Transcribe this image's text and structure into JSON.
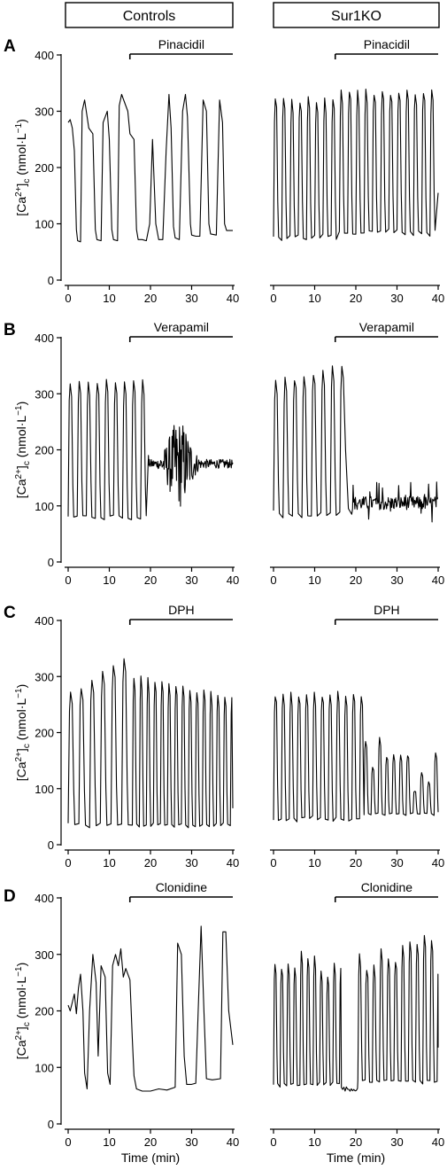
{
  "headers": {
    "left": "Controls",
    "right": "Sur1KO"
  },
  "ylabel": {
    "main": "[Ca",
    "sup": "2+",
    "close": "]",
    "sub": "c",
    "unit": "(nmol·L",
    "unitSup": "−1",
    "unitClose": ")"
  },
  "xlabel": "Time (min)",
  "chart_data": [
    {
      "type": "line",
      "panel": "A",
      "column": "Controls",
      "drug": "Pinacidil",
      "drug_start_min": 15,
      "drug_end_min": 40,
      "xlim": [
        0,
        40
      ],
      "ylim": [
        0,
        400
      ],
      "x_ticks": [
        0,
        10,
        20,
        30,
        40
      ],
      "y_ticks": [
        0,
        100,
        200,
        300,
        400
      ],
      "x_tick_labels": [
        "0",
        "10",
        "20",
        "30",
        "40"
      ],
      "y_tick_labels": [
        "0",
        "100",
        "200",
        "300",
        "400"
      ],
      "segments": [
        [
          0,
          280
        ],
        [
          0.5,
          285
        ],
        [
          1,
          270
        ],
        [
          1.5,
          230
        ],
        [
          2,
          90
        ],
        [
          2.3,
          70
        ],
        [
          3,
          68
        ],
        [
          3.4,
          300
        ],
        [
          4,
          320
        ],
        [
          5,
          270
        ],
        [
          6,
          260
        ],
        [
          6.6,
          90
        ],
        [
          7,
          72
        ],
        [
          8,
          70
        ],
        [
          8.5,
          280
        ],
        [
          9.5,
          300
        ],
        [
          10,
          250
        ],
        [
          10.6,
          90
        ],
        [
          11,
          72
        ],
        [
          12,
          70
        ],
        [
          12.4,
          310
        ],
        [
          13,
          330
        ],
        [
          14.5,
          300
        ],
        [
          15,
          260
        ],
        [
          16,
          250
        ],
        [
          16.6,
          90
        ],
        [
          17,
          72
        ],
        [
          18,
          72
        ],
        [
          19,
          70
        ],
        [
          19.8,
          100
        ],
        [
          20.5,
          250
        ],
        [
          21.3,
          100
        ],
        [
          22,
          72
        ],
        [
          23,
          72
        ],
        [
          23.8,
          230
        ],
        [
          24.5,
          330
        ],
        [
          25,
          270
        ],
        [
          25.6,
          95
        ],
        [
          26,
          75
        ],
        [
          27,
          72
        ],
        [
          27.8,
          300
        ],
        [
          28.5,
          330
        ],
        [
          29,
          290
        ],
        [
          29.7,
          100
        ],
        [
          30,
          80
        ],
        [
          31,
          78
        ],
        [
          32,
          78
        ],
        [
          32.8,
          320
        ],
        [
          33.6,
          300
        ],
        [
          34.2,
          100
        ],
        [
          34.6,
          82
        ],
        [
          36,
          80
        ],
        [
          36.8,
          320
        ],
        [
          37.5,
          280
        ],
        [
          38,
          100
        ],
        [
          38.5,
          88
        ],
        [
          40,
          88
        ]
      ]
    },
    {
      "type": "line",
      "panel": "A",
      "column": "Sur1KO",
      "drug": "Pinacidil",
      "drug_start_min": 15,
      "drug_end_min": 40,
      "xlim": [
        0,
        40
      ],
      "ylim": [
        0,
        400
      ],
      "x_ticks": [
        0,
        10,
        20,
        30,
        40
      ],
      "y_ticks": [
        0,
        100,
        200,
        300,
        400
      ],
      "x_tick_labels": [
        "0",
        "10",
        "20",
        "30",
        "40"
      ],
      "y_tick_labels": [
        "0",
        "100",
        "200",
        "300",
        "400"
      ],
      "period": 2.0,
      "peak": 320,
      "trough": 75,
      "peak_late": 335,
      "trough_late": 85,
      "end_value": 155
    },
    {
      "type": "line",
      "panel": "B",
      "column": "Controls",
      "drug": "Verapamil",
      "drug_start_min": 15,
      "drug_end_min": 40,
      "xlim": [
        0,
        40
      ],
      "ylim": [
        0,
        400
      ],
      "x_ticks": [
        0,
        10,
        20,
        30,
        40
      ],
      "y_ticks": [
        0,
        100,
        200,
        300,
        400
      ],
      "x_tick_labels": [
        "0",
        "10",
        "20",
        "30",
        "40"
      ],
      "y_tick_labels": [
        "0",
        "100",
        "200",
        "300",
        "400"
      ],
      "period": 2.2,
      "peak": 320,
      "trough": 80,
      "settle_value": 175,
      "noise_amplitude_max": 80,
      "noise_center_min": 27
    },
    {
      "type": "line",
      "panel": "B",
      "column": "Sur1KO",
      "drug": "Verapamil",
      "drug_start_min": 15,
      "drug_end_min": 40,
      "xlim": [
        0,
        40
      ],
      "ylim": [
        0,
        400
      ],
      "x_ticks": [
        0,
        10,
        20,
        30,
        40
      ],
      "y_ticks": [
        0,
        100,
        200,
        300,
        400
      ],
      "x_tick_labels": [
        "0",
        "10",
        "20",
        "30",
        "40"
      ],
      "y_tick_labels": [
        "0",
        "100",
        "200",
        "300",
        "400"
      ],
      "period": 2.3,
      "peak": 320,
      "trough": 85,
      "settle_value": 105,
      "noise_amplitude_max": 40
    },
    {
      "type": "line",
      "panel": "C",
      "column": "Controls",
      "drug": "DPH",
      "drug_start_min": 15,
      "drug_end_min": 40,
      "xlim": [
        0,
        40
      ],
      "ylim": [
        0,
        400
      ],
      "x_ticks": [
        0,
        10,
        20,
        30,
        40
      ],
      "y_ticks": [
        0,
        100,
        200,
        300,
        400
      ],
      "x_tick_labels": [
        "0",
        "10",
        "20",
        "30",
        "40"
      ],
      "y_tick_labels": [
        "0",
        "100",
        "200",
        "300",
        "400"
      ],
      "period_early": 2.6,
      "period_late": 1.7,
      "peak": 330,
      "trough": 35,
      "peak_late": 300
    },
    {
      "type": "line",
      "panel": "C",
      "column": "Sur1KO",
      "drug": "DPH",
      "drug_start_min": 15,
      "drug_end_min": 40,
      "xlim": [
        0,
        40
      ],
      "ylim": [
        0,
        400
      ],
      "x_ticks": [
        0,
        10,
        20,
        30,
        40
      ],
      "y_ticks": [
        0,
        100,
        200,
        300,
        400
      ],
      "x_tick_labels": [
        "0",
        "10",
        "20",
        "30",
        "40"
      ],
      "y_tick_labels": [
        "0",
        "100",
        "200",
        "300",
        "400"
      ],
      "period": 1.9,
      "peak_early": 270,
      "trough": 45,
      "peak_late": 190,
      "baseline_late": 55
    },
    {
      "type": "line",
      "panel": "D",
      "column": "Controls",
      "drug": "Clonidine",
      "drug_start_min": 15,
      "drug_end_min": 40,
      "xlim": [
        0,
        40
      ],
      "ylim": [
        0,
        400
      ],
      "x_ticks": [
        0,
        10,
        20,
        30,
        40
      ],
      "y_ticks": [
        0,
        100,
        200,
        300,
        400
      ],
      "x_tick_labels": [
        "0",
        "10",
        "20",
        "30",
        "40"
      ],
      "y_tick_labels": [
        "0",
        "100",
        "200",
        "300",
        "400"
      ],
      "segments": [
        [
          0,
          210
        ],
        [
          0.5,
          200
        ],
        [
          1,
          215
        ],
        [
          1.5,
          230
        ],
        [
          2,
          195
        ],
        [
          2.5,
          240
        ],
        [
          3,
          265
        ],
        [
          3.6,
          200
        ],
        [
          4,
          90
        ],
        [
          4.6,
          62
        ],
        [
          5.2,
          200
        ],
        [
          6,
          300
        ],
        [
          6.8,
          250
        ],
        [
          7.3,
          120
        ],
        [
          8,
          280
        ],
        [
          9,
          260
        ],
        [
          9.6,
          90
        ],
        [
          10.2,
          70
        ],
        [
          10.8,
          280
        ],
        [
          11.5,
          300
        ],
        [
          12.2,
          280
        ],
        [
          12.8,
          310
        ],
        [
          13.4,
          260
        ],
        [
          14,
          275
        ],
        [
          15,
          255
        ],
        [
          15.6,
          150
        ],
        [
          16,
          85
        ],
        [
          16.6,
          62
        ],
        [
          18,
          58
        ],
        [
          20,
          58
        ],
        [
          22,
          62
        ],
        [
          24,
          60
        ],
        [
          26,
          65
        ],
        [
          26.6,
          320
        ],
        [
          27.5,
          300
        ],
        [
          28.2,
          120
        ],
        [
          28.8,
          70
        ],
        [
          30,
          70
        ],
        [
          31,
          72
        ],
        [
          31.6,
          200
        ],
        [
          32.3,
          350
        ],
        [
          33,
          200
        ],
        [
          33.6,
          80
        ],
        [
          35,
          78
        ],
        [
          37,
          80
        ],
        [
          37.6,
          340
        ],
        [
          38.3,
          340
        ],
        [
          39,
          200
        ],
        [
          40,
          140
        ]
      ]
    },
    {
      "type": "line",
      "panel": "D",
      "column": "Sur1KO",
      "drug": "Clonidine",
      "drug_start_min": 15,
      "drug_end_min": 40,
      "xlim": [
        0,
        40
      ],
      "ylim": [
        0,
        400
      ],
      "x_ticks": [
        0,
        10,
        20,
        30,
        40
      ],
      "y_ticks": [
        0,
        100,
        200,
        300,
        400
      ],
      "x_tick_labels": [
        "0",
        "10",
        "20",
        "30",
        "40"
      ],
      "y_tick_labels": [
        "0",
        "100",
        "200",
        "300",
        "400"
      ],
      "period": 1.6,
      "peak": 280,
      "trough": 70,
      "pause_start": 16.5,
      "pause_end": 20.5,
      "peak_late": 320,
      "end_value": 135
    }
  ]
}
